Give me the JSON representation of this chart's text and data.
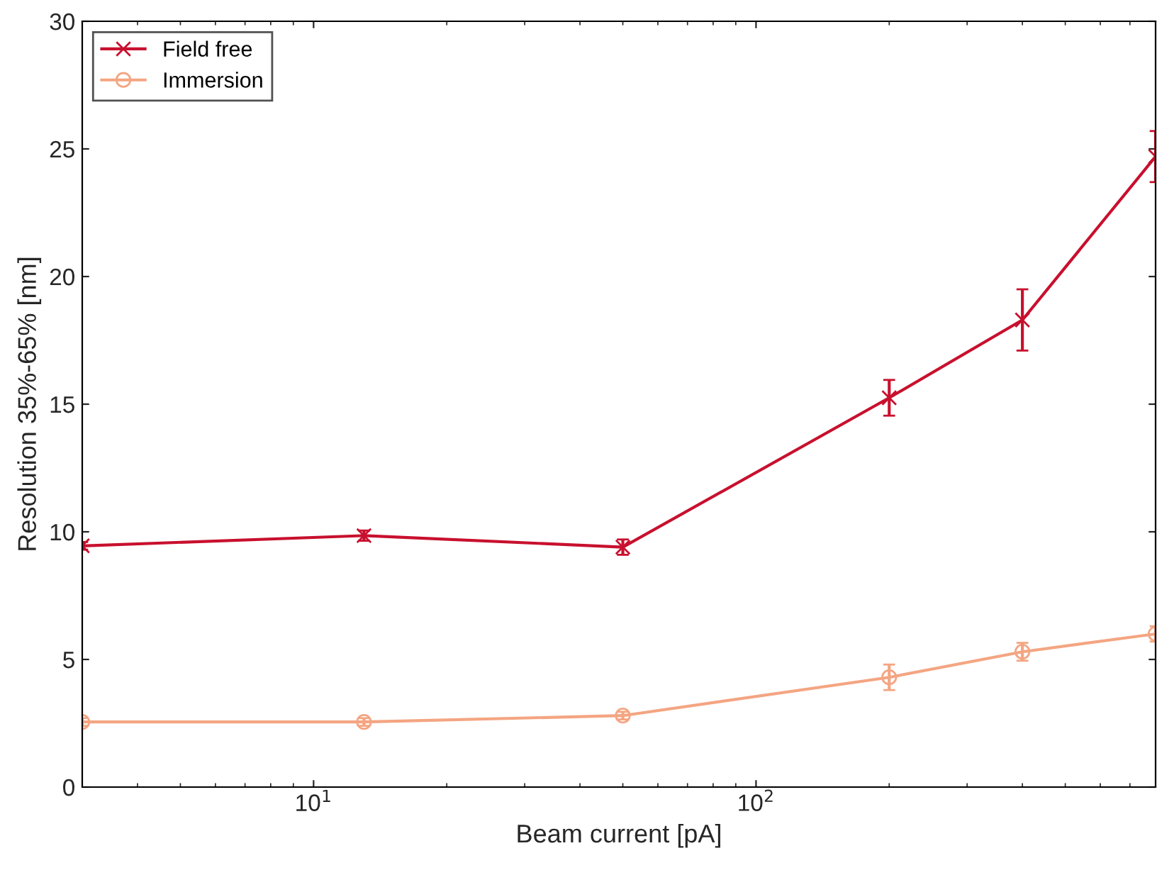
{
  "chart_data": {
    "type": "line",
    "xlabel": "Beam current [pA]",
    "ylabel": "Resolution 35%-65% [nm]",
    "log": "x",
    "x": [
      3,
      13,
      50,
      200,
      400,
      800
    ],
    "xlim": [
      3,
      800
    ],
    "xticks": [
      {
        "value": 10,
        "label": "10$^{1}$"
      },
      {
        "value": 100,
        "label": "10$^{2}$"
      }
    ],
    "ylim": [
      0,
      30
    ],
    "yticks": [
      0,
      5,
      10,
      15,
      20,
      25,
      30
    ],
    "legend": "top left",
    "grid": false,
    "series": [
      {
        "name": "Field free",
        "color": "#c8102e",
        "marker": "cross",
        "values": [
          9.45,
          9.85,
          9.4,
          15.25,
          18.3,
          24.7
        ],
        "errors": [
          0.15,
          0.2,
          0.3,
          0.7,
          1.2,
          1.0
        ]
      },
      {
        "name": "Immersion",
        "color": "#f4a582",
        "marker": "circle",
        "values": [
          2.55,
          2.55,
          2.8,
          4.3,
          5.3,
          6.0
        ],
        "errors": [
          0.15,
          0.15,
          0.15,
          0.5,
          0.35,
          0.3
        ]
      }
    ]
  }
}
